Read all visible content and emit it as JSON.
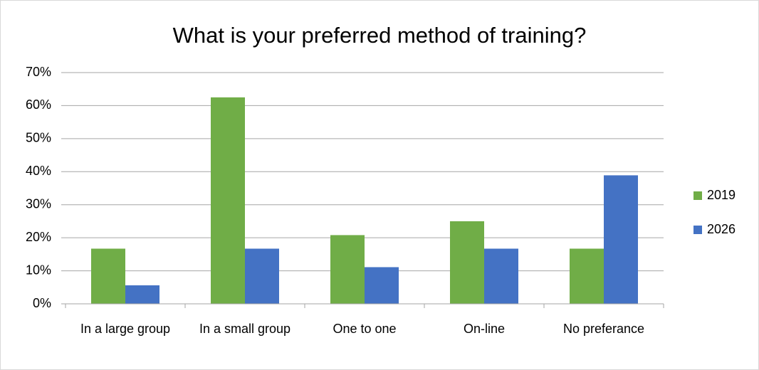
{
  "chart_data": {
    "type": "bar",
    "title": "What is your preferred method of training?",
    "categories": [
      "In a large group",
      "In a small group",
      "One to one",
      "On-line",
      "No preferance"
    ],
    "series": [
      {
        "name": "2019",
        "color": "#70ad47",
        "values": [
          16.7,
          62.5,
          20.8,
          25,
          16.7
        ]
      },
      {
        "name": "2026",
        "color": "#4472c4",
        "values": [
          5.6,
          16.7,
          11.1,
          16.7,
          38.9
        ]
      }
    ],
    "ylim": [
      0,
      70
    ],
    "yticks": [
      {
        "value": 0,
        "label": "0%"
      },
      {
        "value": 10,
        "label": "10%"
      },
      {
        "value": 20,
        "label": "20%"
      },
      {
        "value": 30,
        "label": "30%"
      },
      {
        "value": 40,
        "label": "40%"
      },
      {
        "value": 50,
        "label": "50%"
      },
      {
        "value": 60,
        "label": "60%"
      },
      {
        "value": 70,
        "label": "70%"
      }
    ],
    "grid": true,
    "legend": "right"
  }
}
